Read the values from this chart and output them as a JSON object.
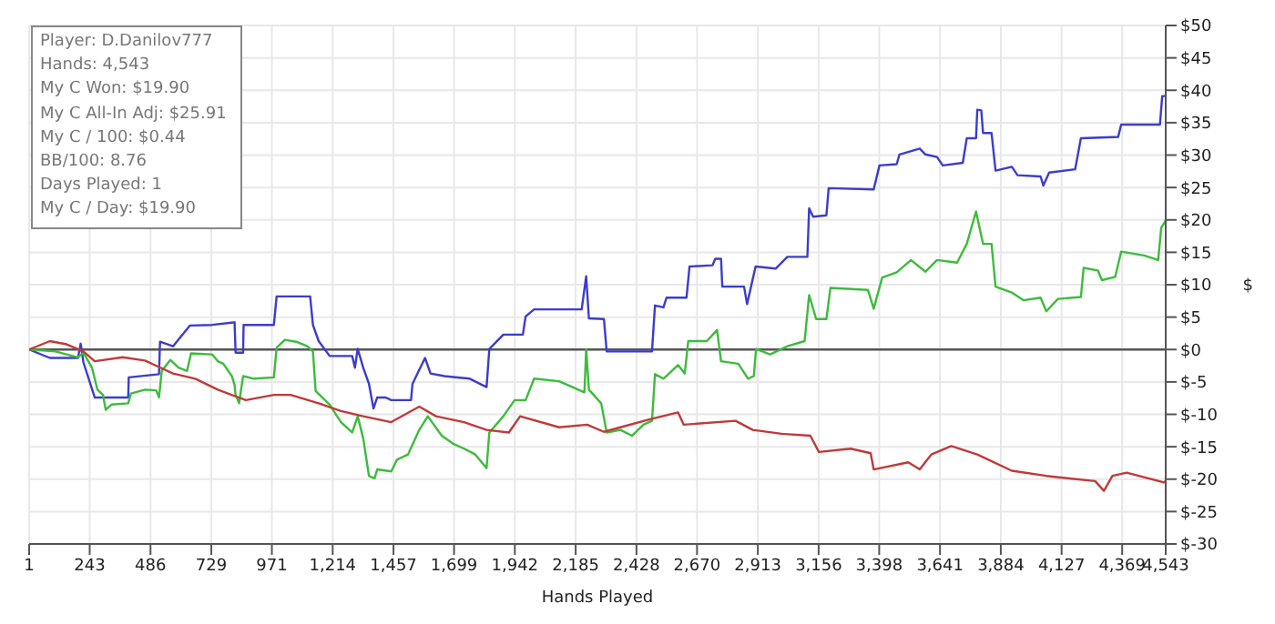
{
  "chart_data": {
    "type": "line",
    "xlabel": "Hands Played",
    "ylabel": "$",
    "annotations": [
      "Player: D.Danilov777",
      "Hands: 4,543",
      "My C Won: $19.90",
      "My C All-In Adj: $25.91",
      "My C / 100: $0.44",
      "BB/100: 8.76",
      "Days Played: 1",
      "My C / Day: $19.90"
    ],
    "xlim": [
      1,
      4543
    ],
    "xticks": [
      1,
      243,
      486,
      729,
      971,
      {
        "value": 1214,
        "label": "1,214"
      },
      {
        "value": 1457,
        "label": "1,457"
      },
      {
        "value": 1699,
        "label": "1,699"
      },
      {
        "value": 1942,
        "label": "1,942"
      },
      {
        "value": 2185,
        "label": "2,185"
      },
      {
        "value": 2428,
        "label": "2,428"
      },
      {
        "value": 2670,
        "label": "2,670"
      },
      {
        "value": 2913,
        "label": "2,913"
      },
      {
        "value": 3156,
        "label": "3,156"
      },
      {
        "value": 3398,
        "label": "3,398"
      },
      {
        "value": 3641,
        "label": "3,641"
      },
      {
        "value": 3884,
        "label": "3,884"
      },
      {
        "value": 4127,
        "label": "4,127"
      },
      {
        "value": 4369,
        "label": "4,369"
      },
      {
        "value": 4543,
        "label": "4,543"
      }
    ],
    "ylim": [
      -30,
      50
    ],
    "yticks": [
      {
        "value": -30,
        "label": "$-30"
      },
      {
        "value": -25,
        "label": "$-25"
      },
      {
        "value": -20,
        "label": "$-20"
      },
      {
        "value": -15,
        "label": "$-15"
      },
      {
        "value": -10,
        "label": "$-10"
      },
      {
        "value": -5,
        "label": "$-5"
      },
      {
        "value": 0,
        "label": "$0"
      },
      {
        "value": 5,
        "label": "$5"
      },
      {
        "value": 10,
        "label": "$10"
      },
      {
        "value": 15,
        "label": "$15"
      },
      {
        "value": 20,
        "label": "$20"
      },
      {
        "value": 25,
        "label": "$25"
      },
      {
        "value": 30,
        "label": "$30"
      },
      {
        "value": 35,
        "label": "$35"
      },
      {
        "value": 40,
        "label": "$40"
      },
      {
        "value": 45,
        "label": "$45"
      },
      {
        "value": 50,
        "label": "$50"
      }
    ],
    "grid": true,
    "marker": "none",
    "line_style": "solid",
    "ref_lines": [
      {
        "axis": "y",
        "value": 0,
        "label": null,
        "color": "#555555"
      }
    ],
    "series": [
      {
        "color": "#3c3ccc",
        "x": [
          1,
          84,
          196,
          207,
          218,
          263,
          397,
          399,
          520,
          524,
          576,
          643,
          732,
          822,
          826,
          856,
          858,
          979,
          990,
          1124,
          1135,
          1158,
          1202,
          1292,
          1303,
          1314,
          1336,
          1359,
          1377,
          1392,
          1426,
          1448,
          1527,
          1533,
          1583,
          1605,
          1661,
          1762,
          1829,
          1840,
          1896,
          1974,
          1985,
          2019,
          2209,
          2227,
          2238,
          2298,
          2309,
          2490,
          2502,
          2536,
          2548,
          2628,
          2640,
          2732,
          2743,
          2766,
          2771,
          2858,
          2870,
          2904,
          2985,
          3031,
          3111,
          3118,
          3134,
          3187,
          3196,
          3376,
          3399,
          3468,
          3479,
          3560,
          3583,
          3629,
          3652,
          3732,
          3748,
          3785,
          3790,
          3806,
          3813,
          3847,
          3863,
          3928,
          3951,
          4043,
          4054,
          4077,
          4181,
          4204,
          4353,
          4365,
          4520,
          4529,
          4543
        ],
        "values": [
          0,
          -1.3,
          -1.3,
          0.9,
          -2,
          -7.4,
          -7.4,
          -4.3,
          -3.8,
          1.2,
          0.5,
          3.7,
          3.8,
          4.2,
          -0.5,
          -0.5,
          3.8,
          3.8,
          8.2,
          8.2,
          3.8,
          1.3,
          -1,
          -1,
          -2.8,
          0.1,
          -2.8,
          -5.3,
          -9.1,
          -7.4,
          -7.4,
          -7.8,
          -7.8,
          -5.3,
          -1.3,
          -3.7,
          -4.1,
          -4.5,
          -5.8,
          0.1,
          2.3,
          2.3,
          5.1,
          6.2,
          6.2,
          11.3,
          4.8,
          4.7,
          -0.3,
          -0.3,
          6.8,
          6.5,
          8,
          8,
          12.8,
          13,
          14,
          14,
          9.7,
          9.7,
          7,
          12.8,
          12.5,
          14.3,
          14.3,
          21.8,
          20.5,
          20.7,
          24.9,
          24.7,
          28.4,
          28.6,
          30.1,
          31,
          30.1,
          29.7,
          28.4,
          28.8,
          32.6,
          32.6,
          37,
          36.9,
          33.4,
          33.4,
          27.6,
          28.2,
          26.9,
          26.7,
          25.3,
          27.3,
          27.8,
          32.6,
          32.8,
          34.7,
          34.7,
          39.1,
          39.1
        ]
      },
      {
        "color": "#3dbb3d",
        "x": [
          1,
          106,
          196,
          218,
          252,
          274,
          296,
          307,
          330,
          397,
          408,
          464,
          509,
          520,
          531,
          565,
          598,
          632,
          648,
          732,
          755,
          777,
          811,
          822,
          826,
          840,
          856,
          900,
          979,
          990,
          1023,
          1068,
          1113,
          1135,
          1146,
          1202,
          1247,
          1292,
          1314,
          1336,
          1359,
          1381,
          1392,
          1448,
          1471,
          1515,
          1560,
          1594,
          1650,
          1694,
          1739,
          1784,
          1829,
          1840,
          1896,
          1941,
          1985,
          2019,
          2119,
          2220,
          2227,
          2238,
          2287,
          2309,
          2364,
          2410,
          2456,
          2490,
          2502,
          2536,
          2594,
          2621,
          2635,
          2709,
          2750,
          2766,
          2835,
          2874,
          2897,
          2906,
          2962,
          3031,
          3100,
          3118,
          3146,
          3187,
          3203,
          3353,
          3376,
          3410,
          3468,
          3525,
          3583,
          3629,
          3709,
          3748,
          3785,
          3813,
          3847,
          3863,
          3928,
          3974,
          4043,
          4066,
          4112,
          4204,
          4215,
          4272,
          4288,
          4341,
          4365,
          4457,
          4513,
          4525,
          4543
        ],
        "values": [
          0,
          -0.3,
          -1.2,
          -0.5,
          -2.8,
          -6.2,
          -7,
          -9.3,
          -8.5,
          -8.3,
          -6.8,
          -6.2,
          -6.3,
          -7.4,
          -3.3,
          -1.6,
          -2.8,
          -3.3,
          -0.6,
          -0.75,
          -1.8,
          -2.2,
          -4.1,
          -5.5,
          -7,
          -8.3,
          -4.1,
          -4.5,
          -4.3,
          0.3,
          1.5,
          1.2,
          0.5,
          -0.3,
          -6.4,
          -8.5,
          -11.2,
          -12.8,
          -10.3,
          -13.7,
          -19.5,
          -19.9,
          -18.5,
          -18.8,
          -17,
          -16.2,
          -12.4,
          -10.3,
          -13.3,
          -14.5,
          -15.3,
          -16.2,
          -18.3,
          -12.8,
          -10.3,
          -7.8,
          -7.8,
          -4.5,
          -4.9,
          -6.6,
          0,
          -6.2,
          -8.3,
          -12.8,
          -12.4,
          -13.3,
          -11.6,
          -11,
          -3.8,
          -4.5,
          -2.4,
          -3.7,
          1.3,
          1.3,
          3,
          -1.8,
          -2.2,
          -4.5,
          -4.1,
          0.1,
          -0.75,
          0.5,
          1.3,
          8.4,
          4.7,
          4.7,
          9.5,
          9.2,
          6.3,
          11.1,
          11.9,
          13.8,
          12,
          13.8,
          13.4,
          16.3,
          21.3,
          16.3,
          16.3,
          9.7,
          8.8,
          7.6,
          8,
          5.9,
          7.8,
          8.1,
          12.6,
          12.2,
          10.7,
          11.2,
          15.1,
          14.5,
          13.8,
          18.8,
          19.9
        ]
      },
      {
        "color": "#c03a3a",
        "x": [
          1,
          84,
          151,
          218,
          263,
          375,
          464,
          520,
          576,
          665,
          755,
          867,
          979,
          1046,
          1158,
          1247,
          1336,
          1448,
          1560,
          1627,
          1739,
          1829,
          1918,
          1963,
          2119,
          2231,
          2298,
          2364,
          2479,
          2594,
          2617,
          2824,
          2893,
          3008,
          3123,
          3157,
          3284,
          3364,
          3376,
          3514,
          3560,
          3606,
          3686,
          3790,
          3928,
          4066,
          4158,
          4261,
          4296,
          4330,
          4387,
          4536,
          4543
        ],
        "values": [
          0,
          1.3,
          0.8,
          -0.3,
          -1.8,
          -1.2,
          -1.7,
          -2.7,
          -3.7,
          -4.5,
          -6.2,
          -7.8,
          -7,
          -7,
          -8.3,
          -9.5,
          -10.3,
          -11.2,
          -8.8,
          -10.3,
          -11.2,
          -12.4,
          -12.8,
          -10.3,
          -12,
          -11.6,
          -12.7,
          -12,
          -10.8,
          -9.7,
          -11.6,
          -11,
          -12.4,
          -13,
          -13.3,
          -15.8,
          -15.3,
          -16,
          -18.5,
          -17.4,
          -18.5,
          -16.2,
          -14.9,
          -16.2,
          -18.7,
          -19.5,
          -19.9,
          -20.3,
          -21.8,
          -19.5,
          -19,
          -20.5,
          -20.3
        ]
      }
    ]
  }
}
